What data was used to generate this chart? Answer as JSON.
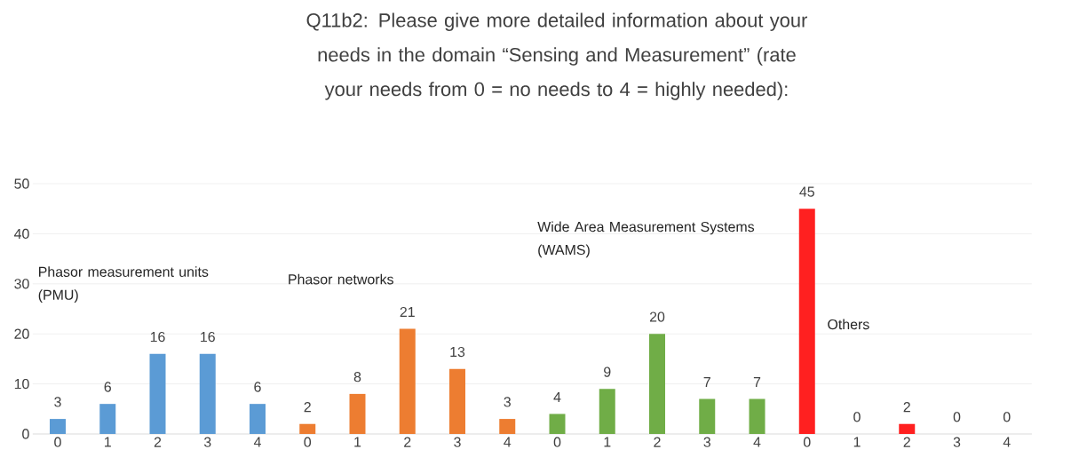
{
  "chart_data": {
    "type": "bar",
    "title": "Q11b2: Please give more detailed information about your needs in the domain “Sensing and Measurement” (rate your needs from 0 = no needs to 4 = highly needed):",
    "categories": [
      "0",
      "1",
      "2",
      "3",
      "4",
      "0",
      "1",
      "2",
      "3",
      "4",
      "0",
      "1",
      "2",
      "3",
      "4",
      "0",
      "1",
      "2",
      "3",
      "4"
    ],
    "values": [
      3,
      6,
      16,
      16,
      6,
      2,
      8,
      21,
      13,
      3,
      4,
      9,
      20,
      7,
      7,
      45,
      0,
      2,
      0,
      0
    ],
    "colors": [
      "#5b9bd5",
      "#5b9bd5",
      "#5b9bd5",
      "#5b9bd5",
      "#5b9bd5",
      "#ed7d31",
      "#ed7d31",
      "#ed7d31",
      "#ed7d31",
      "#ed7d31",
      "#70ad47",
      "#70ad47",
      "#70ad47",
      "#70ad47",
      "#70ad47",
      "#ff2020",
      "#ff2020",
      "#ff2020",
      "#ff2020",
      "#ff2020"
    ],
    "ylim": [
      0,
      50
    ],
    "yticks": [
      0,
      10,
      20,
      30,
      40,
      50
    ],
    "grid": "y",
    "data_labels": true,
    "annotations": [
      "Phasor measurement units (PMU)",
      "Phasor networks",
      "Wide Area Measurement Systems (WAMS)",
      "Others"
    ]
  }
}
